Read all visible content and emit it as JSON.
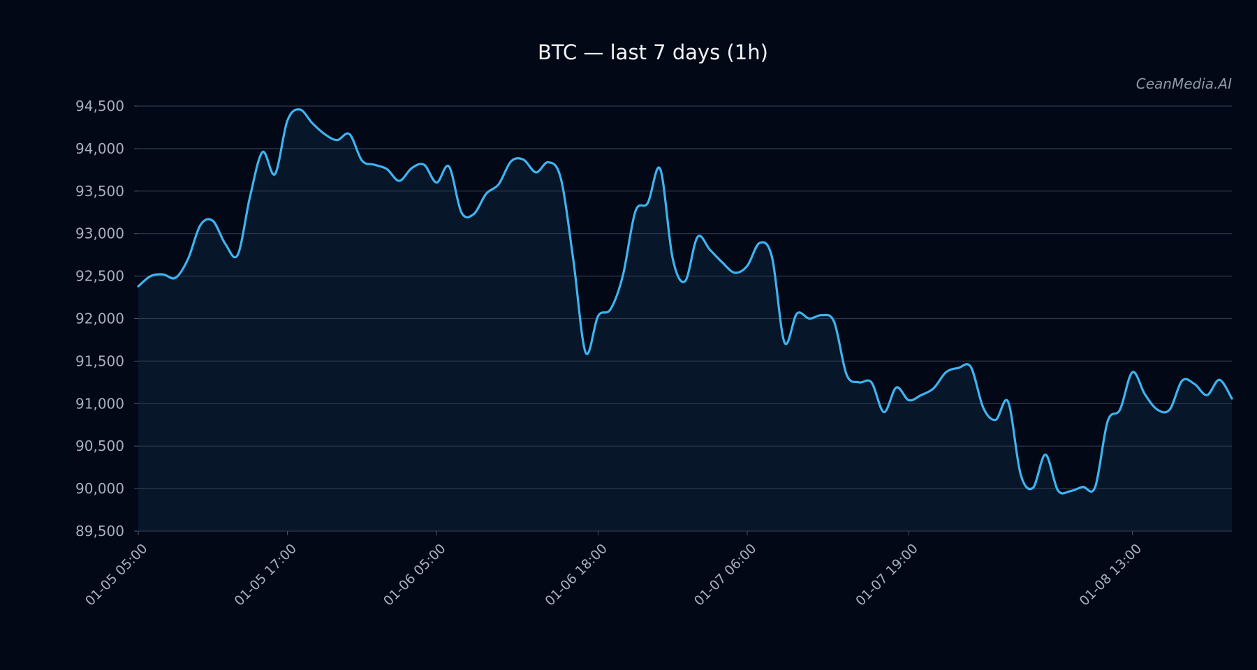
{
  "colors": {
    "background": "#020816",
    "line": "#3db4f0",
    "area_fill": "#071629",
    "grid": "#2e3a4c"
  },
  "watermark": "CeanMedia.AI",
  "chart_data": {
    "type": "line",
    "title": "BTC — last 7 days (1h)",
    "xlabel": "",
    "ylabel": "",
    "grid": true,
    "legend": "none",
    "ylim": [
      89500,
      94500
    ],
    "yticks": [
      89500,
      90000,
      90500,
      91000,
      91500,
      92000,
      92500,
      93000,
      93500,
      94000,
      94500
    ],
    "ytick_labels": [
      "89,500",
      "90,000",
      "90,500",
      "91,000",
      "91,500",
      "92,000",
      "92,500",
      "93,000",
      "93,500",
      "94,000",
      "94,500"
    ],
    "x_start": "01-05 05:00",
    "x_step": "1h",
    "xticks": [
      {
        "index": 0,
        "label": "01-05 05:00"
      },
      {
        "index": 12,
        "label": "01-05 17:00"
      },
      {
        "index": 24,
        "label": "01-06 05:00"
      },
      {
        "index": 37,
        "label": "01-06 18:00"
      },
      {
        "index": 49,
        "label": "01-07 06:00"
      },
      {
        "index": 62,
        "label": "01-07 19:00"
      },
      {
        "index": 80,
        "label": "01-08 13:00"
      }
    ],
    "series": [
      {
        "values": [
          92380,
          92500,
          92520,
          92480,
          92700,
          93100,
          93150,
          92880,
          92750,
          93440,
          93960,
          93700,
          94330,
          94460,
          94300,
          94170,
          94100,
          94170,
          93860,
          93810,
          93760,
          93620,
          93770,
          93810,
          93600,
          93790,
          93250,
          93230,
          93470,
          93580,
          93850,
          93870,
          93720,
          93840,
          93650,
          92700,
          91600,
          92030,
          92110,
          92510,
          93260,
          93360,
          93760,
          92710,
          92440,
          92960,
          92810,
          92660,
          92540,
          92620,
          92890,
          92720,
          91720,
          92060,
          92000,
          92040,
          91960,
          91340,
          91250,
          91250,
          90900,
          91190,
          91040,
          91100,
          91180,
          91370,
          91420,
          91430,
          90950,
          90810,
          91020,
          90170,
          90010,
          90400,
          89980,
          89970,
          90020,
          90020,
          90790,
          90930,
          91370,
          91110,
          90930,
          90930,
          91270,
          91230,
          91100,
          91280,
          91060
        ]
      }
    ]
  }
}
